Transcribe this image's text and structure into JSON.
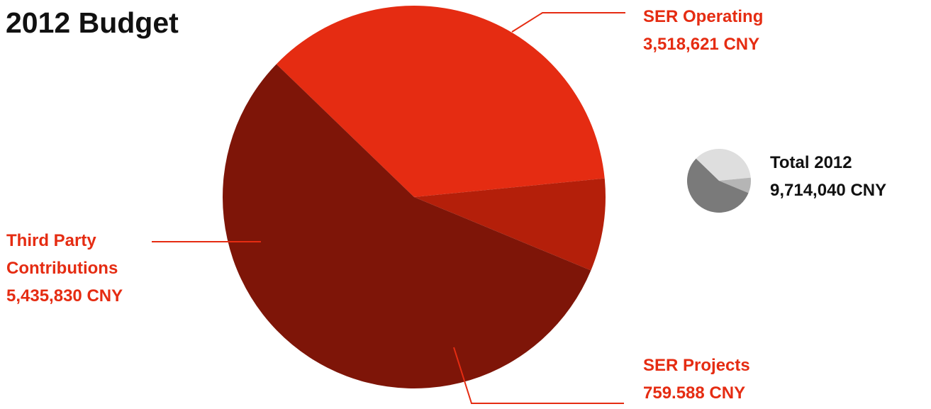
{
  "chart_data": [
    {
      "type": "pie",
      "title": "2012 Budget",
      "unit": "CNY",
      "slices": [
        {
          "name": "SER Operating",
          "value": 3518621,
          "value_label": "3,518,621 CNY",
          "color": "#e52c12"
        },
        {
          "name": "SER Projects",
          "value": 759588,
          "value_label": "759.588 CNY",
          "color": "#b41f0a"
        },
        {
          "name": "Third Party Contributions",
          "name_lines": [
            "Third Party",
            "Contributions"
          ],
          "value": 5435830,
          "value_label": "5,435,830 CNY",
          "color": "#7e1508"
        }
      ],
      "start_angle_deg": -136,
      "direction": "clockwise"
    },
    {
      "type": "pie",
      "title": "",
      "role": "total-indicator",
      "label": "Total 2012",
      "value_label": "9,714,040 CNY",
      "value": 9714040,
      "slices": [
        {
          "name": "SER Operating",
          "value": 3518621,
          "color": "#dedede"
        },
        {
          "name": "SER Projects",
          "value": 759588,
          "color": "#b5b5b5"
        },
        {
          "name": "Third Party Contributions",
          "value": 5435830,
          "color": "#7a7a7a"
        }
      ],
      "start_angle_deg": -136,
      "direction": "clockwise"
    }
  ],
  "colors": {
    "accent": "#e52c12",
    "text": "#111111",
    "leader_line": "#e52c12"
  }
}
